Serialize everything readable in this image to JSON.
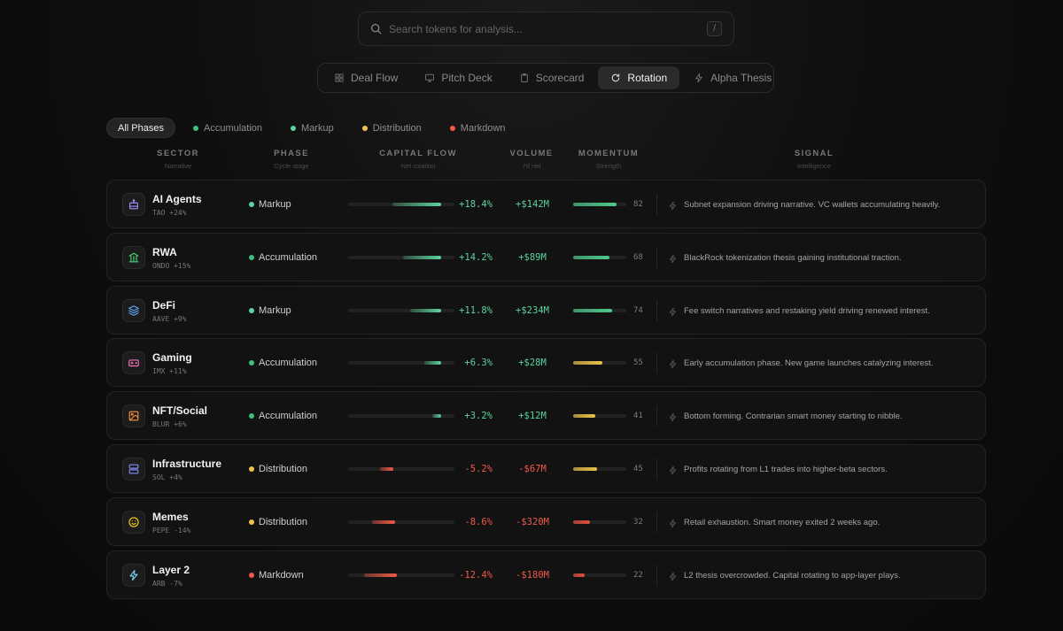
{
  "search": {
    "placeholder": "Search tokens for analysis...",
    "shortcut": "/"
  },
  "tabs": [
    {
      "label": "Deal Flow",
      "icon": "grid-icon",
      "active": false
    },
    {
      "label": "Pitch Deck",
      "icon": "monitor-icon",
      "active": false
    },
    {
      "label": "Scorecard",
      "icon": "clipboard-icon",
      "active": false
    },
    {
      "label": "Rotation",
      "icon": "refresh-icon",
      "active": true
    },
    {
      "label": "Alpha Thesis",
      "icon": "bolt-icon",
      "active": false
    }
  ],
  "filters": [
    {
      "label": "All Phases",
      "active": true,
      "color": ""
    },
    {
      "label": "Accumulation",
      "active": false,
      "color": "#3fbf7f"
    },
    {
      "label": "Markup",
      "active": false,
      "color": "#5dd39e"
    },
    {
      "label": "Distribution",
      "active": false,
      "color": "#f3c04a"
    },
    {
      "label": "Markdown",
      "active": false,
      "color": "#f05a4a"
    }
  ],
  "columns": {
    "sector": {
      "title": "SECTOR",
      "sub": "Narrative"
    },
    "phase": {
      "title": "PHASE",
      "sub": "Cycle stage"
    },
    "capital_flow": {
      "title": "CAPITAL FLOW",
      "sub": "Net rotation"
    },
    "volume": {
      "title": "VOLUME",
      "sub": "7d net"
    },
    "momentum": {
      "title": "MOMENTUM",
      "sub": "Strength"
    },
    "signal": {
      "title": "SIGNAL",
      "sub": "Intelligence"
    }
  },
  "colors": {
    "accumulation": "#3fbf7f",
    "markup": "#5dd39e",
    "distribution": "#f3c04a",
    "markdown": "#f05a4a",
    "positive": "#5dd39e",
    "negative": "#f05a4a",
    "momentum_high": "#4fc98c",
    "momentum_mid": "#e8c24a",
    "momentum_low": "#e0503f"
  },
  "sectors": [
    {
      "name": "AI Agents",
      "token": "TAO +24%",
      "icon": "robot-icon",
      "icon_color": "#a78bfa",
      "phase": "Markup",
      "phase_key": "markup",
      "flow_pct": 18.4,
      "flow_label": "+18.4%",
      "volume": "+$142M",
      "momentum": 82,
      "momentum_label": "82",
      "signal": "Subnet expansion driving narrative. VC wallets accumulating heavily."
    },
    {
      "name": "RWA",
      "token": "ONDO +15%",
      "icon": "bank-icon",
      "icon_color": "#4ade80",
      "phase": "Accumulation",
      "phase_key": "accumulation",
      "flow_pct": 14.2,
      "flow_label": "+14.2%",
      "volume": "+$89M",
      "momentum": 68,
      "momentum_label": "68",
      "signal": "BlackRock tokenization thesis gaining institutional traction."
    },
    {
      "name": "DeFi",
      "token": "AAVE +9%",
      "icon": "layers-icon",
      "icon_color": "#60a5fa",
      "phase": "Markup",
      "phase_key": "markup",
      "flow_pct": 11.8,
      "flow_label": "+11.8%",
      "volume": "+$234M",
      "momentum": 74,
      "momentum_label": "74",
      "signal": "Fee switch narratives and restaking yield driving renewed interest."
    },
    {
      "name": "Gaming",
      "token": "IMX +11%",
      "icon": "gamepad-icon",
      "icon_color": "#f472b6",
      "phase": "Accumulation",
      "phase_key": "accumulation",
      "flow_pct": 6.3,
      "flow_label": "+6.3%",
      "volume": "+$28M",
      "momentum": 55,
      "momentum_label": "55",
      "signal": "Early accumulation phase. New game launches catalyzing interest."
    },
    {
      "name": "NFT/Social",
      "token": "BLUR +6%",
      "icon": "image-icon",
      "icon_color": "#fb923c",
      "phase": "Accumulation",
      "phase_key": "accumulation",
      "flow_pct": 3.2,
      "flow_label": "+3.2%",
      "volume": "+$12M",
      "momentum": 41,
      "momentum_label": "41",
      "signal": "Bottom forming. Contrarian smart money starting to nibble."
    },
    {
      "name": "Infrastructure",
      "token": "SOL +4%",
      "icon": "server-icon",
      "icon_color": "#818cf8",
      "phase": "Distribution",
      "phase_key": "distribution",
      "flow_pct": -5.2,
      "flow_label": "-5.2%",
      "volume": "-$67M",
      "momentum": 45,
      "momentum_label": "45",
      "signal": "Profits rotating from L1 trades into higher-beta sectors."
    },
    {
      "name": "Memes",
      "token": "PEPE -14%",
      "icon": "smile-icon",
      "icon_color": "#facc15",
      "phase": "Distribution",
      "phase_key": "distribution",
      "flow_pct": -8.6,
      "flow_label": "-8.6%",
      "volume": "-$320M",
      "momentum": 32,
      "momentum_label": "32",
      "signal": "Retail exhaustion. Smart money exited 2 weeks ago."
    },
    {
      "name": "Layer 2",
      "token": "ARB -7%",
      "icon": "bolt-icon",
      "icon_color": "#7dd3fc",
      "phase": "Markdown",
      "phase_key": "markdown",
      "flow_pct": -12.4,
      "flow_label": "-12.4%",
      "volume": "-$180M",
      "momentum": 22,
      "momentum_label": "22",
      "signal": "L2 thesis overcrowded. Capital rotating to app-layer plays."
    }
  ]
}
